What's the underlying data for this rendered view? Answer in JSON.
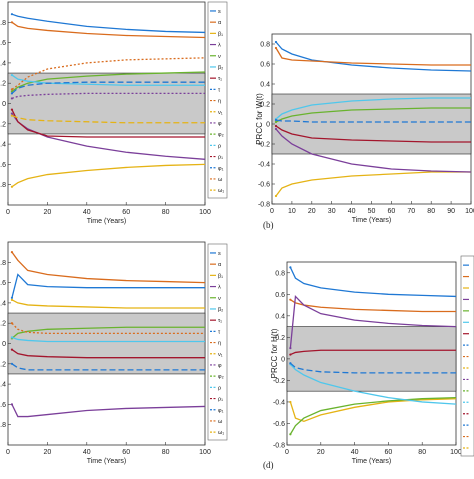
{
  "captions": {
    "b": "(b)",
    "d": "(d)"
  },
  "legend_labels": [
    "s",
    "α",
    "β₁",
    "λ",
    "ν",
    "β₂",
    "τ₁",
    "τ",
    "η",
    "ν₁",
    "φ",
    "φ₂",
    "ρ",
    "ρ₁",
    "φ₁",
    "ω",
    "ω₁"
  ],
  "colors": [
    "#1f78d4",
    "#d96c1e",
    "#e5b315",
    "#7b3f9a",
    "#69b32e",
    "#4fc7ec",
    "#a3152c",
    "#1f78d4",
    "#d96c1e",
    "#e5b315",
    "#7b3f9a",
    "#69b32e",
    "#4fc7ec",
    "#a3152c",
    "#1f78d4",
    "#d96c1e",
    "#e5b315"
  ],
  "chart_data": [
    {
      "type": "line",
      "panel": "a",
      "title": "",
      "xlabel": "Time (Years)",
      "ylabel": "",
      "xlim": [
        0,
        100
      ],
      "ylim": [
        -1,
        1
      ],
      "xticks": [
        0,
        20,
        40,
        60,
        80,
        100
      ],
      "yticks": [
        ".8",
        ".6",
        ".4",
        ".2",
        "0",
        ".2",
        ".4",
        ".6",
        ".8"
      ],
      "shaded_band": [
        -0.3,
        0.3
      ],
      "legend_visible_entries": 17,
      "series": [
        {
          "x": [
            2,
            5,
            10,
            20,
            40,
            60,
            80,
            100
          ],
          "values": [
            0.88,
            0.86,
            0.84,
            0.81,
            0.76,
            0.73,
            0.71,
            0.7
          ]
        },
        {
          "x": [
            2,
            5,
            10,
            20,
            40,
            60,
            80,
            100
          ],
          "values": [
            0.8,
            0.76,
            0.74,
            0.72,
            0.69,
            0.67,
            0.66,
            0.65
          ]
        },
        {
          "x": [
            2,
            5,
            10,
            20,
            40,
            60,
            80,
            100
          ],
          "values": [
            -0.82,
            -0.78,
            -0.74,
            -0.7,
            -0.66,
            -0.63,
            -0.61,
            -0.6
          ]
        },
        {
          "x": [
            2,
            5,
            10,
            20,
            40,
            60,
            80,
            100
          ],
          "values": [
            -0.1,
            -0.18,
            -0.25,
            -0.33,
            -0.42,
            -0.48,
            -0.52,
            -0.55
          ]
        },
        {
          "x": [
            2,
            5,
            10,
            20,
            40,
            60,
            80,
            100
          ],
          "values": [
            0.12,
            0.16,
            0.2,
            0.24,
            0.27,
            0.29,
            0.3,
            0.31
          ]
        },
        {
          "x": [
            2,
            5,
            10,
            20,
            40,
            60,
            80,
            100
          ],
          "values": [
            0.28,
            0.24,
            0.22,
            0.2,
            0.19,
            0.18,
            0.18,
            0.18
          ]
        },
        {
          "x": [
            2,
            5,
            10,
            20,
            40,
            60,
            80,
            100
          ],
          "values": [
            -0.06,
            -0.18,
            -0.26,
            -0.32,
            -0.33,
            -0.33,
            -0.33,
            -0.33
          ]
        },
        {
          "x": [
            2,
            5,
            10,
            20,
            40,
            60,
            80,
            100
          ],
          "values": [
            0.1,
            0.15,
            0.18,
            0.2,
            0.21,
            0.21,
            0.21,
            0.21
          ]
        },
        {
          "x": [
            2,
            5,
            10,
            20,
            40,
            60,
            80,
            100
          ],
          "values": [
            0.14,
            0.18,
            0.26,
            0.34,
            0.4,
            0.43,
            0.44,
            0.45
          ]
        },
        {
          "x": [
            2,
            5,
            10,
            20,
            40,
            60,
            80,
            100
          ],
          "values": [
            -0.12,
            -0.14,
            -0.16,
            -0.17,
            -0.18,
            -0.19,
            -0.19,
            -0.19
          ]
        },
        {
          "x": [
            2,
            5,
            10,
            20,
            40,
            60,
            80,
            100
          ],
          "values": [
            0.05,
            0.07,
            0.08,
            0.09,
            0.1,
            0.1,
            0.1,
            0.1
          ]
        }
      ]
    },
    {
      "type": "line",
      "panel": "b",
      "title": "",
      "xlabel": "Time (Years)",
      "ylabel": "PRCC for W(t)",
      "xlim": [
        0,
        100
      ],
      "ylim": [
        -0.8,
        0.9
      ],
      "xticks": [
        0,
        10,
        20,
        30,
        40,
        50,
        60,
        70,
        80,
        90,
        100
      ],
      "yticks": [
        0.8,
        0.6,
        0.4,
        0.2,
        0,
        -0.2,
        -0.4,
        -0.6,
        -0.8
      ],
      "shaded_band": [
        -0.3,
        0.3
      ],
      "series": [
        {
          "x": [
            2,
            5,
            10,
            20,
            40,
            60,
            80,
            100
          ],
          "values": [
            0.82,
            0.75,
            0.7,
            0.64,
            0.59,
            0.56,
            0.54,
            0.53
          ]
        },
        {
          "x": [
            2,
            5,
            10,
            20,
            40,
            60,
            80,
            100
          ],
          "values": [
            0.76,
            0.66,
            0.64,
            0.63,
            0.61,
            0.6,
            0.59,
            0.59
          ]
        },
        {
          "x": [
            2,
            5,
            10,
            20,
            40,
            60,
            80,
            100
          ],
          "values": [
            -0.72,
            -0.64,
            -0.6,
            -0.56,
            -0.52,
            -0.5,
            -0.48,
            -0.48
          ]
        },
        {
          "x": [
            2,
            5,
            10,
            20,
            40,
            60,
            80,
            100
          ],
          "values": [
            -0.05,
            -0.12,
            -0.2,
            -0.3,
            -0.4,
            -0.45,
            -0.47,
            -0.48
          ]
        },
        {
          "x": [
            2,
            5,
            10,
            20,
            40,
            60,
            80,
            100
          ],
          "values": [
            0.02,
            0.05,
            0.08,
            0.11,
            0.14,
            0.15,
            0.16,
            0.16
          ]
        },
        {
          "x": [
            2,
            5,
            10,
            20,
            40,
            60,
            80,
            100
          ],
          "values": [
            0.05,
            0.1,
            0.14,
            0.19,
            0.23,
            0.25,
            0.26,
            0.26
          ]
        },
        {
          "x": [
            2,
            5,
            10,
            20,
            40,
            60,
            80,
            100
          ],
          "values": [
            -0.02,
            -0.06,
            -0.1,
            -0.14,
            -0.16,
            -0.17,
            -0.18,
            -0.18
          ]
        },
        {
          "x": [
            2,
            5,
            10,
            20,
            40,
            60,
            80,
            100
          ],
          "values": [
            0.04,
            0.03,
            0.03,
            0.02,
            0.02,
            0.02,
            0.02,
            0.02
          ]
        }
      ]
    },
    {
      "type": "line",
      "panel": "c",
      "title": "",
      "xlabel": "Time (Years)",
      "ylabel": "",
      "xlim": [
        0,
        100
      ],
      "ylim": [
        -1,
        1
      ],
      "xticks": [
        0,
        20,
        40,
        60,
        80,
        100
      ],
      "yticks": [
        ".8",
        ".6",
        ".4",
        ".2",
        "0",
        ".2",
        ".4",
        ".6",
        ".8"
      ],
      "shaded_band": [
        -0.3,
        0.3
      ],
      "legend_visible_entries": 17,
      "series": [
        {
          "x": [
            2,
            5,
            10,
            20,
            40,
            60,
            80,
            100
          ],
          "values": [
            0.45,
            0.68,
            0.58,
            0.56,
            0.55,
            0.55,
            0.55,
            0.55
          ]
        },
        {
          "x": [
            2,
            5,
            10,
            20,
            40,
            60,
            80,
            100
          ],
          "values": [
            0.9,
            0.82,
            0.72,
            0.68,
            0.64,
            0.62,
            0.61,
            0.6
          ]
        },
        {
          "x": [
            2,
            5,
            10,
            20,
            40,
            60,
            80,
            100
          ],
          "values": [
            0.43,
            0.4,
            0.38,
            0.37,
            0.36,
            0.35,
            0.35,
            0.35
          ]
        },
        {
          "x": [
            2,
            5,
            10,
            20,
            40,
            60,
            80,
            100
          ],
          "values": [
            -0.6,
            -0.72,
            -0.72,
            -0.7,
            -0.66,
            -0.64,
            -0.63,
            -0.62
          ]
        },
        {
          "x": [
            2,
            5,
            10,
            20,
            40,
            60,
            80,
            100
          ],
          "values": [
            0.05,
            0.1,
            0.12,
            0.14,
            0.15,
            0.16,
            0.16,
            0.16
          ]
        },
        {
          "x": [
            2,
            5,
            10,
            20,
            40,
            60,
            80,
            100
          ],
          "values": [
            0.06,
            0.04,
            0.03,
            0.02,
            0.02,
            0.02,
            0.02,
            0.02
          ]
        },
        {
          "x": [
            2,
            5,
            10,
            20,
            40,
            60,
            80,
            100
          ],
          "values": [
            -0.06,
            -0.1,
            -0.12,
            -0.13,
            -0.14,
            -0.14,
            -0.14,
            -0.14
          ]
        },
        {
          "x": [
            2,
            5,
            10,
            20,
            40,
            60,
            80,
            100
          ],
          "values": [
            -0.2,
            -0.24,
            -0.26,
            -0.26,
            -0.26,
            -0.26,
            -0.26,
            -0.26
          ]
        },
        {
          "x": [
            2,
            5,
            10,
            20,
            40,
            60,
            80,
            100
          ],
          "values": [
            0.2,
            0.14,
            0.11,
            0.1,
            0.1,
            0.1,
            0.1,
            0.1
          ]
        }
      ]
    },
    {
      "type": "line",
      "panel": "d",
      "title": "",
      "xlabel": "Time (Years)",
      "ylabel": "PRCC for H(t)",
      "xlim": [
        0,
        100
      ],
      "ylim": [
        -0.8,
        0.9
      ],
      "xticks": [
        0,
        20,
        40,
        60,
        80,
        100
      ],
      "yticks": [
        0.8,
        0.6,
        0.4,
        0.2,
        0,
        -0.2,
        -0.4,
        -0.6,
        -0.8
      ],
      "shaded_band": [
        -0.3,
        0.3
      ],
      "series": [
        {
          "x": [
            2,
            5,
            10,
            20,
            40,
            60,
            80,
            100
          ],
          "values": [
            0.85,
            0.75,
            0.7,
            0.66,
            0.62,
            0.6,
            0.59,
            0.58
          ]
        },
        {
          "x": [
            2,
            5,
            10,
            20,
            40,
            60,
            80,
            100
          ],
          "values": [
            0.55,
            0.52,
            0.5,
            0.48,
            0.46,
            0.45,
            0.44,
            0.44
          ]
        },
        {
          "x": [
            2,
            5,
            10,
            20,
            40,
            60,
            80,
            100
          ],
          "values": [
            -0.4,
            -0.55,
            -0.58,
            -0.52,
            -0.45,
            -0.4,
            -0.38,
            -0.37
          ]
        },
        {
          "x": [
            2,
            5,
            10,
            20,
            40,
            60,
            80,
            100
          ],
          "values": [
            0.1,
            0.58,
            0.5,
            0.42,
            0.36,
            0.33,
            0.31,
            0.3
          ]
        },
        {
          "x": [
            2,
            5,
            10,
            20,
            40,
            60,
            80,
            100
          ],
          "values": [
            -0.7,
            -0.62,
            -0.55,
            -0.48,
            -0.42,
            -0.39,
            -0.37,
            -0.36
          ]
        },
        {
          "x": [
            2,
            5,
            10,
            20,
            40,
            60,
            80,
            100
          ],
          "values": [
            -0.05,
            -0.1,
            -0.15,
            -0.22,
            -0.3,
            -0.36,
            -0.4,
            -0.42
          ]
        },
        {
          "x": [
            2,
            5,
            10,
            20,
            40,
            60,
            80,
            100
          ],
          "values": [
            0.04,
            0.06,
            0.07,
            0.08,
            0.08,
            0.08,
            0.08,
            0.08
          ]
        },
        {
          "x": [
            2,
            5,
            10,
            20,
            40,
            60,
            80,
            100
          ],
          "values": [
            -0.04,
            -0.08,
            -0.1,
            -0.12,
            -0.13,
            -0.13,
            -0.13,
            -0.13
          ]
        }
      ]
    }
  ]
}
